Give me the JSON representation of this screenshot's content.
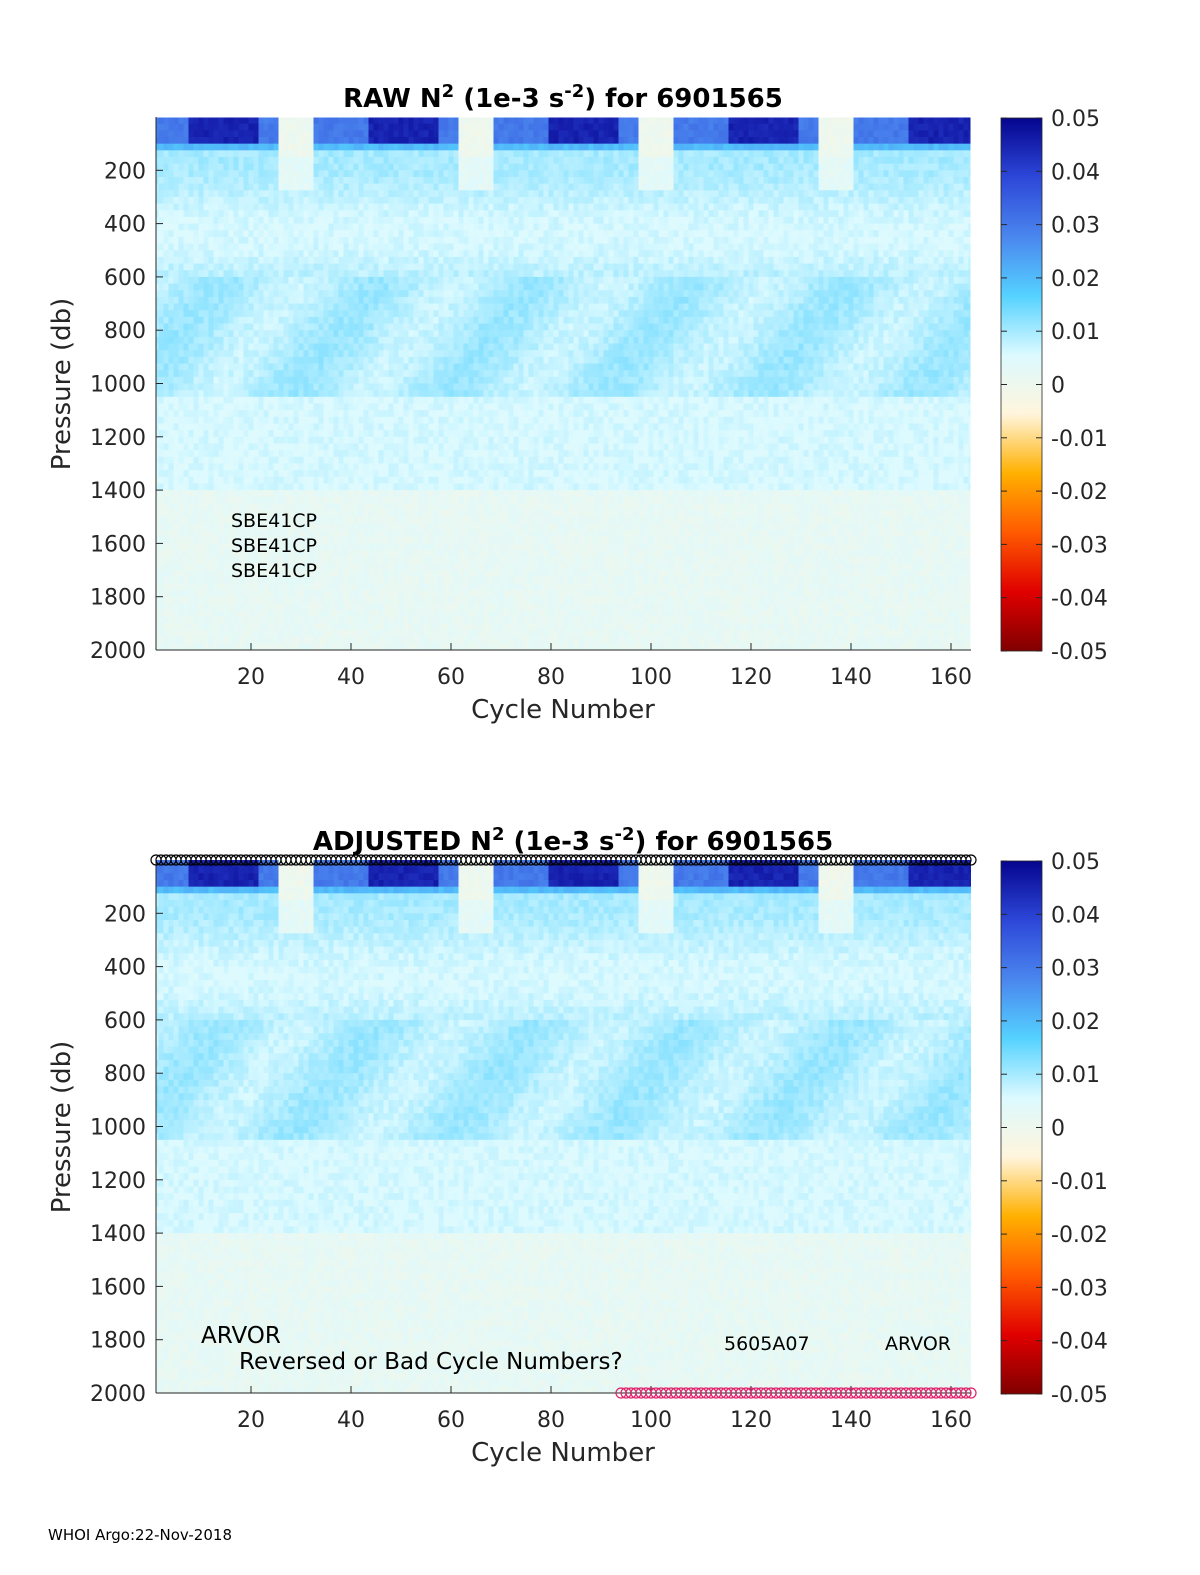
{
  "figure": {
    "footer": "WHOI Argo:22-Nov-2018"
  },
  "colorbar": {
    "ticks": [
      "0.05",
      "0.04",
      "0.03",
      "0.02",
      "0.01",
      "0",
      "-0.01",
      "-0.02",
      "-0.03",
      "-0.04",
      "-0.05"
    ],
    "range": [
      -0.05,
      0.05
    ],
    "colors_low_to_high": [
      "#800000",
      "#e00000",
      "#ff5a00",
      "#ffb000",
      "#fff5dc",
      "#dcfaff",
      "#55d2ff",
      "#4a86ee",
      "#2d47d8",
      "#05058e"
    ]
  },
  "chart_data": [
    {
      "type": "heatmap",
      "title_prefix": "RAW N",
      "title_sup1": "2",
      "title_mid": " (1e-3 s",
      "title_sup2": "-2",
      "title_suffix": ") for 6901565",
      "xlabel": "Cycle Number",
      "ylabel": "Pressure (db)",
      "xlim": [
        1,
        164
      ],
      "ylim": [
        0,
        2000
      ],
      "y_reversed": true,
      "xticks": [
        20,
        40,
        60,
        80,
        100,
        120,
        140,
        160
      ],
      "yticks": [
        200,
        400,
        600,
        800,
        1000,
        1200,
        1400,
        1600,
        1800,
        2000
      ],
      "annotations": [
        "SBE41CP",
        "SBE41CP",
        "SBE41CP"
      ],
      "markers": []
    },
    {
      "type": "heatmap",
      "title_prefix": "ADJUSTED N",
      "title_sup1": "2",
      "title_mid": " (1e-3 s",
      "title_sup2": "-2",
      "title_suffix": ") for 6901565",
      "xlabel": "Cycle Number",
      "ylabel": "Pressure (db)",
      "xlim": [
        1,
        164
      ],
      "ylim": [
        0,
        2000
      ],
      "y_reversed": true,
      "xticks": [
        20,
        40,
        60,
        80,
        100,
        120,
        140,
        160
      ],
      "yticks": [
        200,
        400,
        600,
        800,
        1000,
        1200,
        1400,
        1600,
        1800,
        2000
      ],
      "annotations": [
        "ARVOR",
        "Reversed or Bad Cycle Numbers?",
        "5605A07",
        "ARVOR"
      ],
      "markers": [
        {
          "color": "#000000",
          "pressure": 0,
          "cycle_range": [
            1,
            164
          ]
        },
        {
          "color": "#e0206a",
          "pressure": 2000,
          "cycle_range": [
            94,
            164
          ]
        }
      ]
    }
  ]
}
